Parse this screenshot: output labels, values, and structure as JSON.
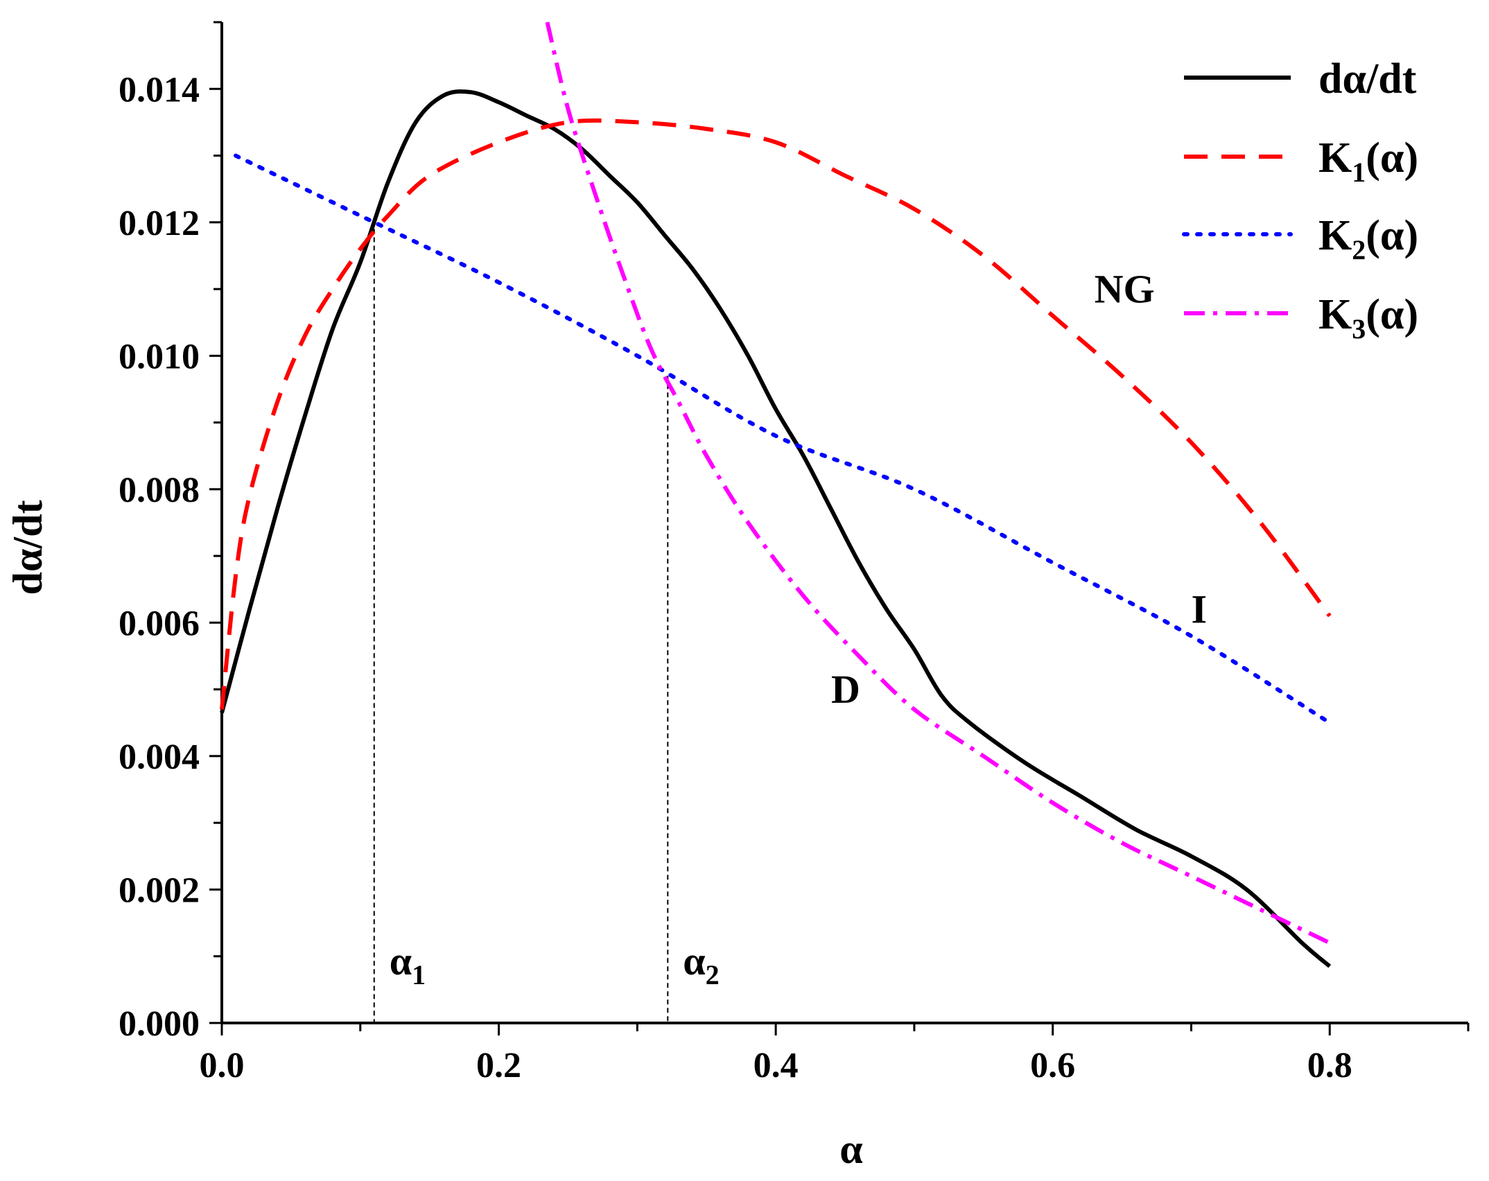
{
  "chart_data": {
    "type": "line",
    "title": "",
    "xlabel": "α",
    "ylabel": "dα/dt",
    "xlim": [
      0,
      0.9
    ],
    "ylim": [
      0,
      0.015
    ],
    "grid": false,
    "legend_position": "top-right",
    "x_ticks": [
      "0.0",
      "0.2",
      "0.4",
      "0.6",
      "0.8"
    ],
    "x_tick_values": [
      0.0,
      0.2,
      0.4,
      0.6,
      0.8
    ],
    "y_ticks": [
      "0.000",
      "0.002",
      "0.004",
      "0.006",
      "0.008",
      "0.010",
      "0.012",
      "0.014"
    ],
    "y_tick_values": [
      0.0,
      0.002,
      0.004,
      0.006,
      0.008,
      0.01,
      0.012,
      0.014
    ],
    "series": [
      {
        "name": "dα/dt",
        "legend_main": "dα/dt",
        "legend_sub": "",
        "legend_tail": "",
        "color": "#000000",
        "style": "solid",
        "x": [
          0.0,
          0.02,
          0.04,
          0.06,
          0.08,
          0.1,
          0.12,
          0.14,
          0.16,
          0.18,
          0.2,
          0.22,
          0.24,
          0.26,
          0.28,
          0.3,
          0.32,
          0.34,
          0.36,
          0.38,
          0.4,
          0.42,
          0.44,
          0.46,
          0.48,
          0.5,
          0.52,
          0.54,
          0.58,
          0.62,
          0.66,
          0.7,
          0.74,
          0.78,
          0.8
        ],
        "y": [
          0.00465,
          0.0062,
          0.0077,
          0.0091,
          0.0104,
          0.0114,
          0.0126,
          0.0135,
          0.0139,
          0.01395,
          0.0138,
          0.0136,
          0.0134,
          0.0131,
          0.0127,
          0.0123,
          0.0118,
          0.0113,
          0.0107,
          0.01,
          0.0092,
          0.0085,
          0.0077,
          0.0069,
          0.0062,
          0.0056,
          0.0049,
          0.0045,
          0.0039,
          0.0034,
          0.0029,
          0.0025,
          0.002,
          0.0012,
          0.00085
        ]
      },
      {
        "name": "K1(α)",
        "legend_main": "K",
        "legend_sub": "1",
        "legend_tail": "(α)",
        "color": "#ff0000",
        "style": "dashed",
        "x": [
          0.0,
          0.01,
          0.02,
          0.04,
          0.06,
          0.08,
          0.1,
          0.12,
          0.15,
          0.2,
          0.25,
          0.3,
          0.35,
          0.4,
          0.45,
          0.5,
          0.55,
          0.6,
          0.65,
          0.7,
          0.75,
          0.8
        ],
        "y": [
          0.0047,
          0.0067,
          0.0079,
          0.0093,
          0.0103,
          0.011,
          0.0116,
          0.0121,
          0.0127,
          0.0132,
          0.0135,
          0.0135,
          0.0134,
          0.0132,
          0.0127,
          0.0122,
          0.0115,
          0.0106,
          0.0097,
          0.0087,
          0.0075,
          0.0061
        ]
      },
      {
        "name": "K2(α)",
        "legend_main": "K",
        "legend_sub": "2",
        "legend_tail": "(α)",
        "color": "#0000ff",
        "style": "dotted",
        "x": [
          0.01,
          0.1,
          0.2,
          0.3,
          0.4,
          0.5,
          0.6,
          0.7,
          0.8
        ],
        "y": [
          0.013,
          0.0121,
          0.0111,
          0.01,
          0.0088,
          0.008,
          0.0069,
          0.0058,
          0.0045
        ]
      },
      {
        "name": "K3(α)",
        "legend_main": "K",
        "legend_sub": "3",
        "legend_tail": "(α)",
        "color": "#ff00ff",
        "style": "dashdot",
        "x": [
          0.235,
          0.25,
          0.27,
          0.29,
          0.31,
          0.33,
          0.35,
          0.38,
          0.42,
          0.46,
          0.5,
          0.55,
          0.6,
          0.65,
          0.7,
          0.75,
          0.8
        ],
        "y": [
          0.015,
          0.0137,
          0.0124,
          0.0112,
          0.0101,
          0.0093,
          0.0085,
          0.0075,
          0.0064,
          0.0055,
          0.0047,
          0.004,
          0.0033,
          0.0027,
          0.0022,
          0.0017,
          0.0012
        ]
      }
    ],
    "vertical_markers": [
      {
        "x": 0.11,
        "y": 0.0119,
        "label": "α",
        "sub": "1"
      },
      {
        "x": 0.322,
        "y": 0.0097,
        "label": "α",
        "sub": "2"
      }
    ],
    "annotations": [
      {
        "text": "NG",
        "x": 0.63,
        "y": 0.0108
      },
      {
        "text": "I",
        "x": 0.7,
        "y": 0.006
      },
      {
        "text": "D",
        "x": 0.44,
        "y": 0.0048
      }
    ]
  }
}
